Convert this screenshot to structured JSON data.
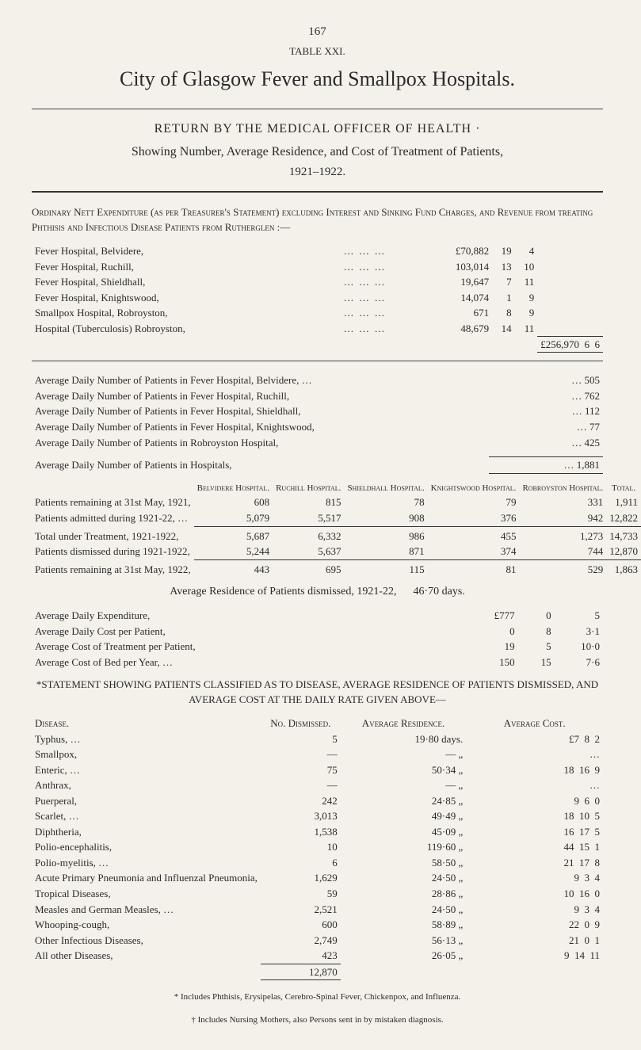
{
  "page_number": "167",
  "table_label": "TABLE XXI.",
  "title": "City of Glasgow Fever and Smallpox Hospitals.",
  "return_title": "RETURN BY THE MEDICAL OFFICER OF HEALTH ·",
  "sub_line": "Showing Number, Average Residence, and Cost of Treatment of Patients,",
  "years": "1921–1922.",
  "ordinary_head": "Ordinary Nett Expenditure (as per Treasurer's Statement) excluding Interest and Sinking Fund Charges, and Revenue from treating Phthisis and Infectious Disease Patients from Rutherglen :—",
  "expenditure_rows": [
    {
      "label": "Fever Hospital, Belvidere,",
      "l": "£70,882",
      "s": "19",
      "d": "4"
    },
    {
      "label": "Fever Hospital, Ruchill,",
      "l": "103,014",
      "s": "13",
      "d": "10"
    },
    {
      "label": "Fever Hospital, Shieldhall,",
      "l": "19,647",
      "s": "7",
      "d": "11"
    },
    {
      "label": "Fever Hospital, Knightswood,",
      "l": "14,074",
      "s": "1",
      "d": "9"
    },
    {
      "label": "Smallpox Hospital, Robroyston,",
      "l": "671",
      "s": "8",
      "d": "9"
    },
    {
      "label": "Hospital (Tuberculosis) Robroyston,",
      "l": "48,679",
      "s": "14",
      "d": "11"
    }
  ],
  "expenditure_total": {
    "l": "£256,970",
    "s": "6",
    "d": "6"
  },
  "avg_daily_rows": [
    {
      "label": "Average Daily Number of Patients in Fever Hospital, Belvidere, …",
      "val": "505"
    },
    {
      "label": "Average Daily Number of Patients in Fever Hospital, Ruchill,",
      "val": "762"
    },
    {
      "label": "Average Daily Number of Patients in Fever Hospital, Shieldhall,",
      "val": "112"
    },
    {
      "label": "Average Daily Number of Patients in Fever Hospital, Knightswood,",
      "val": "77"
    },
    {
      "label": "Average Daily Number of Patients in Robroyston Hospital,",
      "val": "425"
    }
  ],
  "avg_daily_total": {
    "label": "Average Daily Number of Patients in Hospitals,",
    "val": "1,881"
  },
  "hospital_cols": [
    "Belvidere Hospital.",
    "Ruchill Hospital.",
    "Shieldhall Hospital.",
    "Knightswood Hospital.",
    "Robroyston Hospital.",
    "Total."
  ],
  "hospital_rows": [
    {
      "label": "Patients remaining at 31st May, 1921,",
      "v": [
        "608",
        "815",
        "78",
        "79",
        "331",
        "1,911"
      ]
    },
    {
      "label": "Patients admitted during 1921-22, …",
      "v": [
        "5,079",
        "5,517",
        "908",
        "376",
        "942",
        "12,822"
      ]
    }
  ],
  "hospital_sub": [
    {
      "label": "Total under Treatment, 1921-1922,",
      "v": [
        "5,687",
        "6,332",
        "986",
        "455",
        "1,273",
        "14,733"
      ]
    },
    {
      "label": "Patients dismissed during 1921-1922,",
      "v": [
        "5,244",
        "5,637",
        "871",
        "374",
        "744",
        "12,870"
      ]
    }
  ],
  "hospital_remain": {
    "label": "Patients remaining at 31st May, 1922,",
    "v": [
      "443",
      "695",
      "115",
      "81",
      "529",
      "1,863"
    ]
  },
  "avg_res_label": "Average Residence of Patients dismissed, 1921-22,",
  "avg_res_val": "46·70 days.",
  "cost_rows": [
    {
      "label": "Average Daily Expenditure,",
      "l": "£777",
      "s": "0",
      "d": "5"
    },
    {
      "label": "Average Daily Cost per Patient,",
      "l": "0",
      "s": "8",
      "d": "3·1"
    },
    {
      "label": "Average Cost of Treatment per Patient,",
      "l": "19",
      "s": "5",
      "d": "10·0"
    },
    {
      "label": "Average Cost of Bed per Year, …",
      "l": "150",
      "s": "15",
      "d": "7·6"
    }
  ],
  "statement_head": "*STATEMENT SHOWING PATIENTS CLASSIFIED AS TO DISEASE, AVERAGE RESIDENCE OF PATIENTS DISMISSED, AND AVERAGE COST AT THE DAILY RATE GIVEN ABOVE—",
  "disease_cols": [
    "Disease.",
    "No. Dismissed.",
    "Average Residence.",
    "Average Cost."
  ],
  "diseases": [
    {
      "name": "Typhus, …",
      "no": "5",
      "res": "19·80 days.",
      "l": "£7",
      "s": "8",
      "d": "2"
    },
    {
      "name": "Smallpox,",
      "no": "—",
      "res": "— „",
      "l": "",
      "s": "",
      "d": "…"
    },
    {
      "name": "Enteric, …",
      "no": "75",
      "res": "50·34 „",
      "l": "18",
      "s": "16",
      "d": "9"
    },
    {
      "name": "Anthrax,",
      "no": "—",
      "res": "— „",
      "l": "",
      "s": "",
      "d": "…"
    },
    {
      "name": "Puerperal,",
      "no": "242",
      "res": "24·85 „",
      "l": "9",
      "s": "6",
      "d": "0"
    },
    {
      "name": "Scarlet, …",
      "no": "3,013",
      "res": "49·49 „",
      "l": "18",
      "s": "10",
      "d": "5"
    },
    {
      "name": "Diphtheria,",
      "no": "1,538",
      "res": "45·09 „",
      "l": "16",
      "s": "17",
      "d": "5"
    },
    {
      "name": "Polio-encephalitis,",
      "no": "10",
      "res": "119·60 „",
      "l": "44",
      "s": "15",
      "d": "1"
    },
    {
      "name": "Polio-myelitis, …",
      "no": "6",
      "res": "58·50 „",
      "l": "21",
      "s": "17",
      "d": "8"
    },
    {
      "name": "Acute Primary Pneumonia and Influenzal Pneumonia,",
      "no": "1,629",
      "res": "24·50 „",
      "l": "9",
      "s": "3",
      "d": "4"
    },
    {
      "name": "Tropical Diseases,",
      "no": "59",
      "res": "28·86 „",
      "l": "10",
      "s": "16",
      "d": "0"
    },
    {
      "name": "Measles and German Measles, …",
      "no": "2,521",
      "res": "24·50 „",
      "l": "9",
      "s": "3",
      "d": "4"
    },
    {
      "name": "Whooping-cough,",
      "no": "600",
      "res": "58·89 „",
      "l": "22",
      "s": "0",
      "d": "9"
    },
    {
      "name": "Other Infectious Diseases,",
      "no": "2,749",
      "res": "56·13 „",
      "l": "21",
      "s": "0",
      "d": "1"
    },
    {
      "name": "All other Diseases,",
      "no": "423",
      "res": "26·05 „",
      "l": "9",
      "s": "14",
      "d": "11"
    }
  ],
  "disease_total": "12,870",
  "footnote1": "* Includes Phthisis, Erysipelas, Cerebro-Spinal Fever, Chickenpox, and Influenza.",
  "footnote2": "† Includes Nursing Mothers, also Persons sent in by mistaken diagnosis."
}
